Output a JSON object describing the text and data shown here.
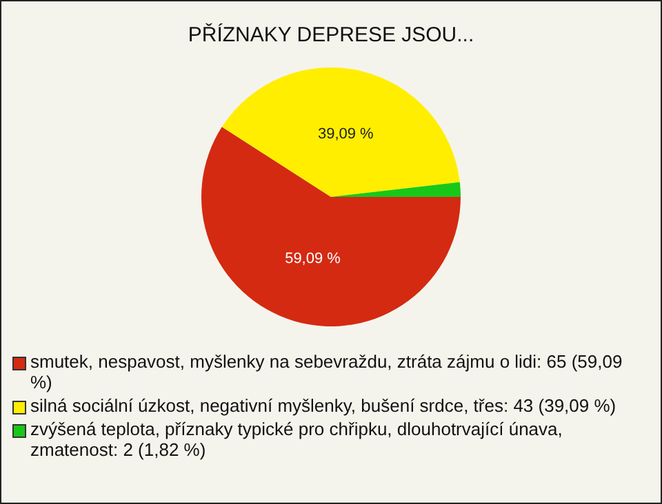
{
  "chart_data": {
    "type": "pie",
    "title": "PŘÍZNAKY DEPRESE JSOU...",
    "categories": [
      "smutek, nespavost, myšlenky na sebevraždu, ztráta zájmu o lidi: 65 (59,09 %)",
      "silná sociální úzkost, negativní myšlenky, bušení srdce, třes: 43 (39,09 %)",
      "zvýšená teplota, příznaky typické pro chřipku, dlouhotrvající únava, zmatenost: 2 (1,82 %)"
    ],
    "values": [
      59.09,
      39.09,
      1.82
    ],
    "colors": [
      "#d42a12",
      "#ffee00",
      "#18c818"
    ],
    "value_labels": [
      "59,09 %",
      "39,09 %",
      null
    ],
    "legend": "bottom"
  }
}
